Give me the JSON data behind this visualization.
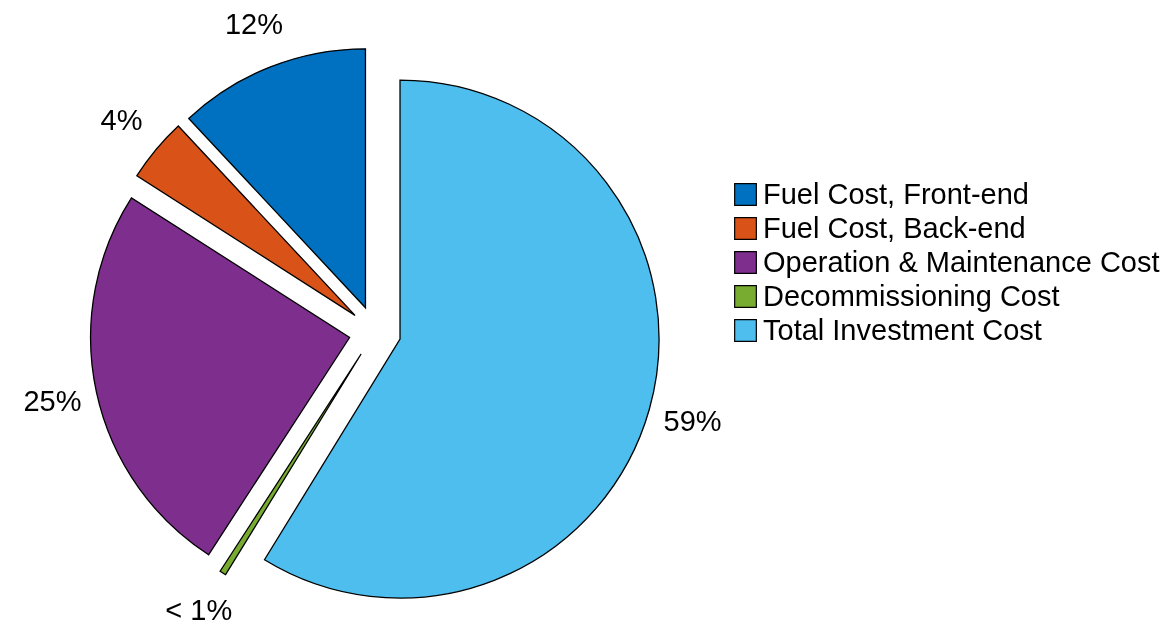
{
  "chart_data": {
    "type": "pie",
    "categories": [
      "Fuel Cost, Front-end",
      "Fuel Cost, Back-end",
      "Operation & Maintenance Cost",
      "Decommissioning Cost",
      "Total Investment Cost"
    ],
    "values": [
      12,
      4,
      25,
      0.4,
      59
    ],
    "value_labels": [
      "12%",
      "4%",
      "25%",
      "< 1%",
      "59%"
    ],
    "colors": [
      "#0070c0",
      "#d95319",
      "#7e2f8e",
      "#77ac30",
      "#4dbeee"
    ],
    "legend": "right"
  }
}
